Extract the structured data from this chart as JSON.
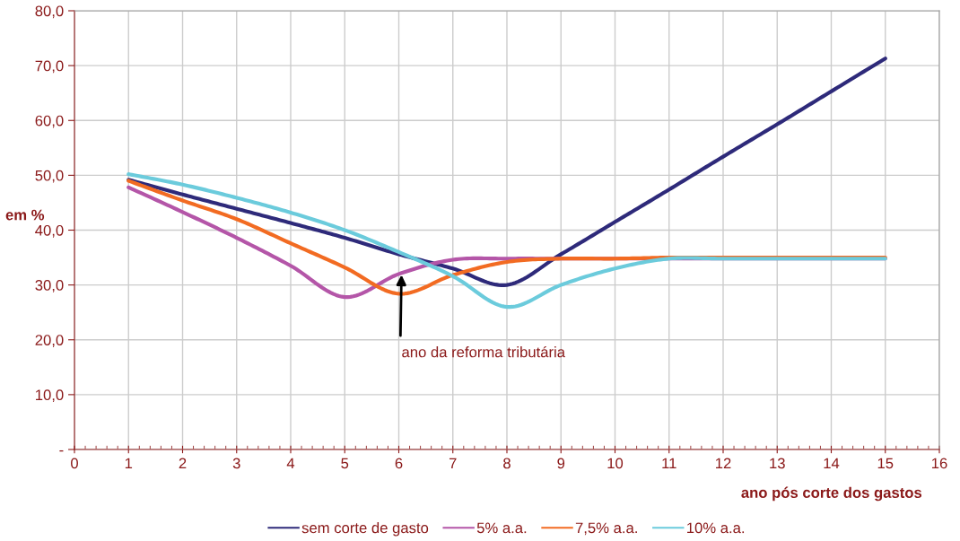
{
  "chart_data": {
    "type": "line",
    "xlabel": "ano pós corte dos gastos",
    "ylabel": "em %",
    "x": [
      1,
      2,
      3,
      4,
      5,
      6,
      7,
      8,
      9,
      10,
      11,
      12,
      13,
      14,
      15
    ],
    "series": [
      {
        "name": "sem corte de gasto",
        "color": "#2e2a7a",
        "values": [
          49.2,
          46.5,
          43.9,
          41.3,
          38.6,
          35.6,
          33.0,
          30.0,
          35.6,
          41.5,
          47.4,
          53.4,
          59.3,
          65.3,
          71.3
        ]
      },
      {
        "name": "5% a.a.",
        "color": "#b456a8",
        "values": [
          47.8,
          43.3,
          38.6,
          33.5,
          27.8,
          32.0,
          34.6,
          34.8,
          34.8,
          34.8,
          34.8,
          34.8,
          34.8,
          34.8,
          34.8
        ]
      },
      {
        "name": "7,5% a.a.",
        "color": "#f26b22",
        "values": [
          49.0,
          45.4,
          42.0,
          37.6,
          33.2,
          28.4,
          31.8,
          34.2,
          34.8,
          34.8,
          35.0,
          35.0,
          35.0,
          35.0,
          35.0
        ]
      },
      {
        "name": "10% a.a.",
        "color": "#6bcbdc",
        "values": [
          50.2,
          48.3,
          45.9,
          43.2,
          40.0,
          36.0,
          31.6,
          26.0,
          30.0,
          33.0,
          34.8,
          34.8,
          34.8,
          34.8,
          34.8
        ]
      }
    ],
    "xlim": [
      0,
      16
    ],
    "xticks": [
      0,
      1,
      2,
      3,
      4,
      5,
      6,
      7,
      8,
      9,
      10,
      11,
      12,
      13,
      14,
      15,
      16
    ],
    "ylim": [
      0,
      80
    ],
    "yticks": [
      {
        "value": 0,
        "label": "-"
      },
      {
        "value": 10,
        "label": "10,0"
      },
      {
        "value": 20,
        "label": "20,0"
      },
      {
        "value": 30,
        "label": "30,0"
      },
      {
        "value": 40,
        "label": "40,0"
      },
      {
        "value": 50,
        "label": "50,0"
      },
      {
        "value": 60,
        "label": "60,0"
      },
      {
        "value": 70,
        "label": "70,0"
      },
      {
        "value": 80,
        "label": "80,0"
      }
    ],
    "annotations": [
      {
        "text": "ano da reforma tributária",
        "x": 6.05,
        "y": 32.3
      }
    ],
    "grid": true,
    "legend": "bottom",
    "marker": "none",
    "line_style": "solid"
  }
}
